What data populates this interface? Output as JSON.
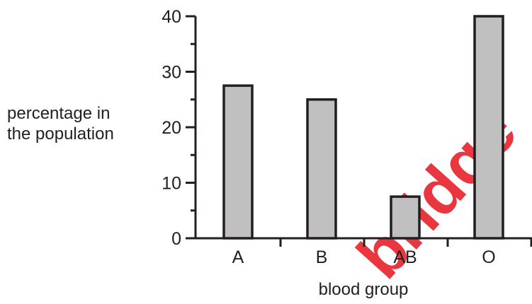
{
  "chart_data": {
    "type": "bar",
    "title": "",
    "categories": [
      "A",
      "B",
      "AB",
      "O"
    ],
    "values": [
      27.5,
      25,
      7.5,
      40
    ],
    "xlabel": "blood group",
    "ylabel_lines": [
      "percentage in",
      "the population"
    ],
    "ylim": [
      0,
      40
    ],
    "yticks": [
      0,
      10,
      20,
      30,
      40
    ],
    "grid": false,
    "legend": "none",
    "bar_fill": "#c0c0c0",
    "bar_stroke": "#231f20",
    "axis_color": "#231f20"
  },
  "watermark": {
    "text": "bridge",
    "color": "#e8202a"
  }
}
